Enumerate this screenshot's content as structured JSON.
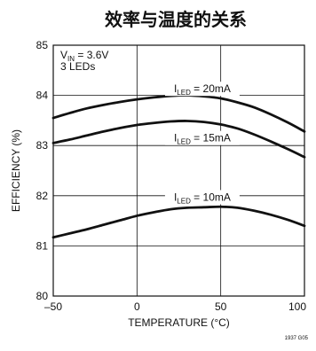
{
  "chart_data": {
    "type": "line",
    "title": "效率与温度的关系",
    "xlabel": "TEMPERATURE (°C)",
    "ylabel": "EFFICIENCY (%)",
    "xlim": [
      -50,
      100
    ],
    "ylim": [
      80,
      85
    ],
    "x_ticks": [
      "–50",
      "0",
      "50",
      "100"
    ],
    "y_ticks": [
      "80",
      "81",
      "82",
      "83",
      "84",
      "85"
    ],
    "grid": true,
    "conditions": {
      "vin_main": "V",
      "vin_sub": "IN",
      "vin_value": " = 3.6V",
      "leds": "3 LEDs"
    },
    "series": [
      {
        "label_main": "I",
        "label_sub": "LED",
        "label_value": " = 20mA",
        "x": [
          -50,
          -40,
          -30,
          -20,
          -10,
          0,
          10,
          20,
          30,
          40,
          50,
          60,
          70,
          80,
          90,
          100
        ],
        "y": [
          83.55,
          83.65,
          83.74,
          83.81,
          83.87,
          83.92,
          83.96,
          83.99,
          84.0,
          83.98,
          83.94,
          83.86,
          83.76,
          83.62,
          83.46,
          83.28
        ]
      },
      {
        "label_main": "I",
        "label_sub": "LED",
        "label_value": " = 15mA",
        "x": [
          -50,
          -40,
          -30,
          -20,
          -10,
          0,
          10,
          20,
          30,
          40,
          50,
          60,
          70,
          80,
          90,
          100
        ],
        "y": [
          83.05,
          83.12,
          83.2,
          83.28,
          83.35,
          83.41,
          83.45,
          83.48,
          83.49,
          83.47,
          83.42,
          83.34,
          83.22,
          83.08,
          82.93,
          82.77
        ]
      },
      {
        "label_main": "I",
        "label_sub": "LED",
        "label_value": " = 10mA",
        "x": [
          -50,
          -40,
          -30,
          -20,
          -10,
          0,
          10,
          20,
          30,
          40,
          50,
          60,
          70,
          80,
          90,
          100
        ],
        "y": [
          81.17,
          81.25,
          81.33,
          81.42,
          81.51,
          81.6,
          81.67,
          81.73,
          81.76,
          81.77,
          81.78,
          81.76,
          81.7,
          81.62,
          81.52,
          81.4
        ]
      }
    ],
    "figure_code": "1937 G05"
  }
}
